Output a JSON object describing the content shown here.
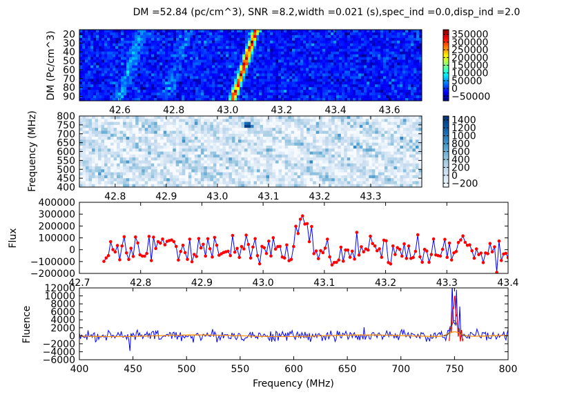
{
  "title": "DM =52.84 (pc/cm^3), SNR =8.2,width =0.021 (s),spec_ind =0.0,disp_ind =2.0",
  "colors": {
    "jet": [
      "#00007f",
      "#0000ff",
      "#007fff",
      "#00ffff",
      "#7fff7f",
      "#ffff00",
      "#ff7f00",
      "#ff0000",
      "#7f0000"
    ],
    "blues": [
      "#f7fbff",
      "#deebf7",
      "#c6dbef",
      "#9ecae1",
      "#6baed6",
      "#4292c6",
      "#2171b5",
      "#08519c",
      "#08306b"
    ],
    "flux_line": "#0000ff",
    "flux_points": "#ff0000",
    "fluence_line": "#0000ff",
    "fluence_model": "#ff8c00",
    "fluence_fit": "#555555",
    "fluence_peak": "#ff0000"
  },
  "chart_data": [
    {
      "type": "heatmap",
      "ylabel": "DM (Pc/cm^3)",
      "x_ticks": [
        "42.6",
        "42.8",
        "43.0",
        "43.2",
        "43.4",
        "43.6"
      ],
      "y_ticks": [
        "20",
        "30",
        "40",
        "50",
        "60",
        "70",
        "80",
        "90"
      ],
      "xlim": [
        42.45,
        43.72
      ],
      "ylim": [
        95,
        15
      ],
      "colorbar": {
        "ticks": [
          "350000",
          "300000",
          "250000",
          "200000",
          "150000",
          "100000",
          "50000",
          "0",
          "−50000"
        ],
        "range": [
          -80000,
          380000
        ],
        "colormap": "jet"
      },
      "features": [
        {
          "kind": "dispersed-track",
          "x_at_dm20": 43.1,
          "x_at_dm92": 43.02,
          "peak": 350000
        }
      ]
    },
    {
      "type": "heatmap",
      "ylabel": "Frequency (MHz)",
      "x_ticks": [
        "42.8",
        "42.9",
        "43.0",
        "43.1",
        "43.2",
        "43.3"
      ],
      "y_ticks": [
        "800",
        "750",
        "700",
        "650",
        "600",
        "550",
        "500",
        "450",
        "400"
      ],
      "xlim": [
        42.73,
        43.4
      ],
      "ylim": [
        400,
        800
      ],
      "colorbar": {
        "ticks": [
          "1400",
          "1200",
          "1000",
          "800",
          "600",
          "400",
          "200",
          "0",
          "−200"
        ],
        "range": [
          -300,
          1500
        ],
        "colormap": "blues"
      },
      "features": [
        {
          "kind": "burst",
          "x": 43.06,
          "freq_range": [
            740,
            770
          ],
          "peak": 1400
        }
      ]
    },
    {
      "type": "line",
      "ylabel": "Flux",
      "x_ticks": [
        "42.7",
        "42.8",
        "42.9",
        "43.0",
        "43.1",
        "43.2",
        "43.3",
        "43.4"
      ],
      "y_ticks": [
        "400000",
        "300000",
        "200000",
        "100000",
        "0",
        "−100000",
        "−200000"
      ],
      "xlim": [
        42.7,
        43.4
      ],
      "ylim": [
        -200000,
        400000
      ],
      "x_range": [
        42.74,
        43.4
      ],
      "n_points": 180,
      "noise_sigma": 65000,
      "pulse": {
        "center": 43.065,
        "width": 0.012,
        "peak": 310000
      }
    },
    {
      "type": "line",
      "xlabel": "Frequency (MHz)",
      "ylabel": "Fluence",
      "x_ticks": [
        "400",
        "450",
        "500",
        "550",
        "600",
        "650",
        "700",
        "750",
        "800"
      ],
      "y_ticks": [
        "12000",
        "10000",
        "8000",
        "6000",
        "4000",
        "2000",
        "0",
        "−2000",
        "−4000",
        "−6000"
      ],
      "xlim": [
        400,
        800
      ],
      "ylim": [
        -6000,
        12000
      ],
      "n_points": 400,
      "noise_sigma": 700,
      "spikes": [
        {
          "x": 447,
          "y": -3800
        },
        {
          "x": 748,
          "y": 10200
        },
        {
          "x": 752,
          "y": 8500
        },
        {
          "x": 755,
          "y": 6000
        }
      ],
      "model": {
        "baseline": 0,
        "bump_center": 750,
        "bump_width": 5,
        "bump_peak": 3500
      }
    }
  ]
}
